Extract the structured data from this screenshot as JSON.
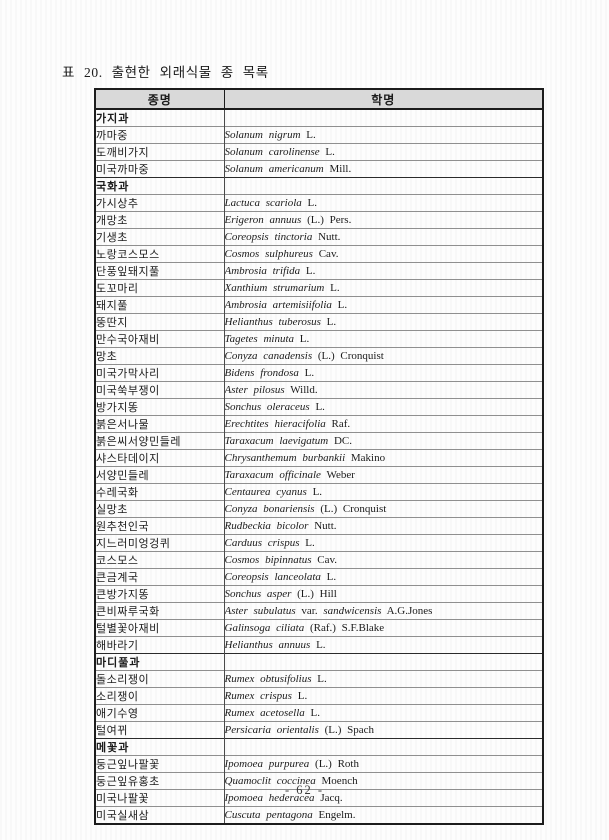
{
  "document": {
    "title": "표 20. 출현한 외래식물 종 목록",
    "page_number": "- 62 -"
  },
  "colors": {
    "header_bg": "#d9d9d9",
    "border_dark": "#1c1c1c",
    "border_light": "#8f8f8f",
    "text": "#1b1b1b",
    "page_bg": "#fdfdfd"
  },
  "table": {
    "columns": [
      "종명",
      "학명"
    ],
    "groups": [
      {
        "family": "가지과",
        "rows": [
          {
            "name": "까마중",
            "sci": [
              {
                "t": "Solanum nigrum",
                "italic": true
              },
              {
                "t": "L.",
                "italic": false
              }
            ]
          },
          {
            "name": "도깨비가지",
            "sci": [
              {
                "t": "Solanum carolinense",
                "italic": true
              },
              {
                "t": "L.",
                "italic": false
              }
            ]
          },
          {
            "name": "미국까마중",
            "sci": [
              {
                "t": "Solanum americanum",
                "italic": true
              },
              {
                "t": "Mill.",
                "italic": false
              }
            ]
          }
        ]
      },
      {
        "family": "국화과",
        "rows": [
          {
            "name": "가시상추",
            "sci": [
              {
                "t": "Lactuca scariola",
                "italic": true
              },
              {
                "t": "L.",
                "italic": false
              }
            ]
          },
          {
            "name": "개망초",
            "sci": [
              {
                "t": "Erigeron annuus",
                "italic": true
              },
              {
                "t": "(L.) Pers.",
                "italic": false
              }
            ]
          },
          {
            "name": "기생초",
            "sci": [
              {
                "t": "Coreopsis tinctoria",
                "italic": true
              },
              {
                "t": "Nutt.",
                "italic": false
              }
            ]
          },
          {
            "name": "노랑코스모스",
            "sci": [
              {
                "t": "Cosmos sulphureus",
                "italic": true
              },
              {
                "t": "Cav.",
                "italic": false
              }
            ]
          },
          {
            "name": "단풍잎돼지풀",
            "sci": [
              {
                "t": "Ambrosia trifida",
                "italic": true
              },
              {
                "t": "L.",
                "italic": false
              }
            ]
          },
          {
            "name": "도꼬마리",
            "sci": [
              {
                "t": "Xanthium strumarium",
                "italic": true
              },
              {
                "t": "L.",
                "italic": false
              }
            ]
          },
          {
            "name": "돼지풀",
            "sci": [
              {
                "t": "Ambrosia artemisiifolia",
                "italic": true
              },
              {
                "t": "L.",
                "italic": false
              }
            ]
          },
          {
            "name": "뚱딴지",
            "sci": [
              {
                "t": "Helianthus tuberosus",
                "italic": true
              },
              {
                "t": "L.",
                "italic": false
              }
            ]
          },
          {
            "name": "만수국아재비",
            "sci": [
              {
                "t": "Tagetes minuta",
                "italic": true
              },
              {
                "t": "L.",
                "italic": false
              }
            ]
          },
          {
            "name": "망초",
            "sci": [
              {
                "t": "Conyza canadensis",
                "italic": true
              },
              {
                "t": "(L.) Cronquist",
                "italic": false
              }
            ]
          },
          {
            "name": "미국가막사리",
            "sci": [
              {
                "t": "Bidens frondosa",
                "italic": true
              },
              {
                "t": "L.",
                "italic": false
              }
            ]
          },
          {
            "name": "미국쑥부쟁이",
            "sci": [
              {
                "t": "Aster pilosus",
                "italic": true
              },
              {
                "t": "Willd.",
                "italic": false
              }
            ]
          },
          {
            "name": "방가지똥",
            "sci": [
              {
                "t": "Sonchus oleraceus",
                "italic": true
              },
              {
                "t": "L.",
                "italic": false
              }
            ]
          },
          {
            "name": "붉은서나물",
            "sci": [
              {
                "t": "Erechtites hieracifolia",
                "italic": true
              },
              {
                "t": "Raf.",
                "italic": false
              }
            ]
          },
          {
            "name": "붉은씨서양민들레",
            "sci": [
              {
                "t": "Taraxacum laevigatum",
                "italic": true
              },
              {
                "t": "DC.",
                "italic": false
              }
            ]
          },
          {
            "name": "샤스타데이지",
            "sci": [
              {
                "t": "Chrysanthemum burbankii",
                "italic": true
              },
              {
                "t": "Makino",
                "italic": false
              }
            ]
          },
          {
            "name": "서양민들레",
            "sci": [
              {
                "t": "Taraxacum officinale",
                "italic": true
              },
              {
                "t": "Weber",
                "italic": false
              }
            ]
          },
          {
            "name": "수레국화",
            "sci": [
              {
                "t": "Centaurea cyanus",
                "italic": true
              },
              {
                "t": "L.",
                "italic": false
              }
            ]
          },
          {
            "name": "실망초",
            "sci": [
              {
                "t": "Conyza bonariensis",
                "italic": true
              },
              {
                "t": "(L.) Cronquist",
                "italic": false
              }
            ]
          },
          {
            "name": "원추천인국",
            "sci": [
              {
                "t": "Rudbeckia bicolor",
                "italic": true
              },
              {
                "t": "Nutt.",
                "italic": false
              }
            ]
          },
          {
            "name": "지느러미엉겅퀴",
            "sci": [
              {
                "t": "Carduus crispus",
                "italic": true
              },
              {
                "t": "L.",
                "italic": false
              }
            ]
          },
          {
            "name": "코스모스",
            "sci": [
              {
                "t": "Cosmos bipinnatus",
                "italic": true
              },
              {
                "t": "Cav.",
                "italic": false
              }
            ]
          },
          {
            "name": "큰금계국",
            "sci": [
              {
                "t": "Coreopsis lanceolata",
                "italic": true
              },
              {
                "t": "L.",
                "italic": false
              }
            ]
          },
          {
            "name": "큰방가지똥",
            "sci": [
              {
                "t": "Sonchus asper",
                "italic": true
              },
              {
                "t": "(L.) Hill",
                "italic": false
              }
            ]
          },
          {
            "name": "큰비짜루국화",
            "sci": [
              {
                "t": "Aster subulatus",
                "italic": true
              },
              {
                "t": "var.",
                "italic": false
              },
              {
                "t": "sandwicensis",
                "italic": true
              },
              {
                "t": "A.G.Jones",
                "italic": false
              }
            ]
          },
          {
            "name": "털별꽃아재비",
            "sci": [
              {
                "t": "Galinsoga ciliata",
                "italic": true
              },
              {
                "t": "(Raf.) S.F.Blake",
                "italic": false
              }
            ]
          },
          {
            "name": "해바라기",
            "sci": [
              {
                "t": "Helianthus annuus",
                "italic": true
              },
              {
                "t": "L.",
                "italic": false
              }
            ]
          }
        ]
      },
      {
        "family": "마디풀과",
        "rows": [
          {
            "name": "돌소리쟁이",
            "sci": [
              {
                "t": "Rumex obtusifolius",
                "italic": true
              },
              {
                "t": "L.",
                "italic": false
              }
            ]
          },
          {
            "name": "소리쟁이",
            "sci": [
              {
                "t": "Rumex crispus",
                "italic": true
              },
              {
                "t": "L.",
                "italic": false
              }
            ]
          },
          {
            "name": "애기수영",
            "sci": [
              {
                "t": "Rumex acetosella",
                "italic": true
              },
              {
                "t": "L.",
                "italic": false
              }
            ]
          },
          {
            "name": "털여뀌",
            "sci": [
              {
                "t": "Persicaria orientalis",
                "italic": true
              },
              {
                "t": "(L.) Spach",
                "italic": false
              }
            ]
          }
        ]
      },
      {
        "family": "메꽃과",
        "rows": [
          {
            "name": "둥근잎나팔꽃",
            "sci": [
              {
                "t": "Ipomoea purpurea",
                "italic": true
              },
              {
                "t": "(L.) Roth",
                "italic": false
              }
            ]
          },
          {
            "name": "둥근잎유홍초",
            "sci": [
              {
                "t": "Quamoclit coccinea",
                "italic": true
              },
              {
                "t": "Moench",
                "italic": false
              }
            ]
          },
          {
            "name": "미국나팔꽃",
            "sci": [
              {
                "t": "Ipomoea hederacea",
                "italic": true
              },
              {
                "t": "Jacq.",
                "italic": false
              }
            ]
          },
          {
            "name": "미국실새삼",
            "sci": [
              {
                "t": "Cuscuta pentagona",
                "italic": true
              },
              {
                "t": "Engelm.",
                "italic": false
              }
            ]
          }
        ]
      }
    ]
  }
}
